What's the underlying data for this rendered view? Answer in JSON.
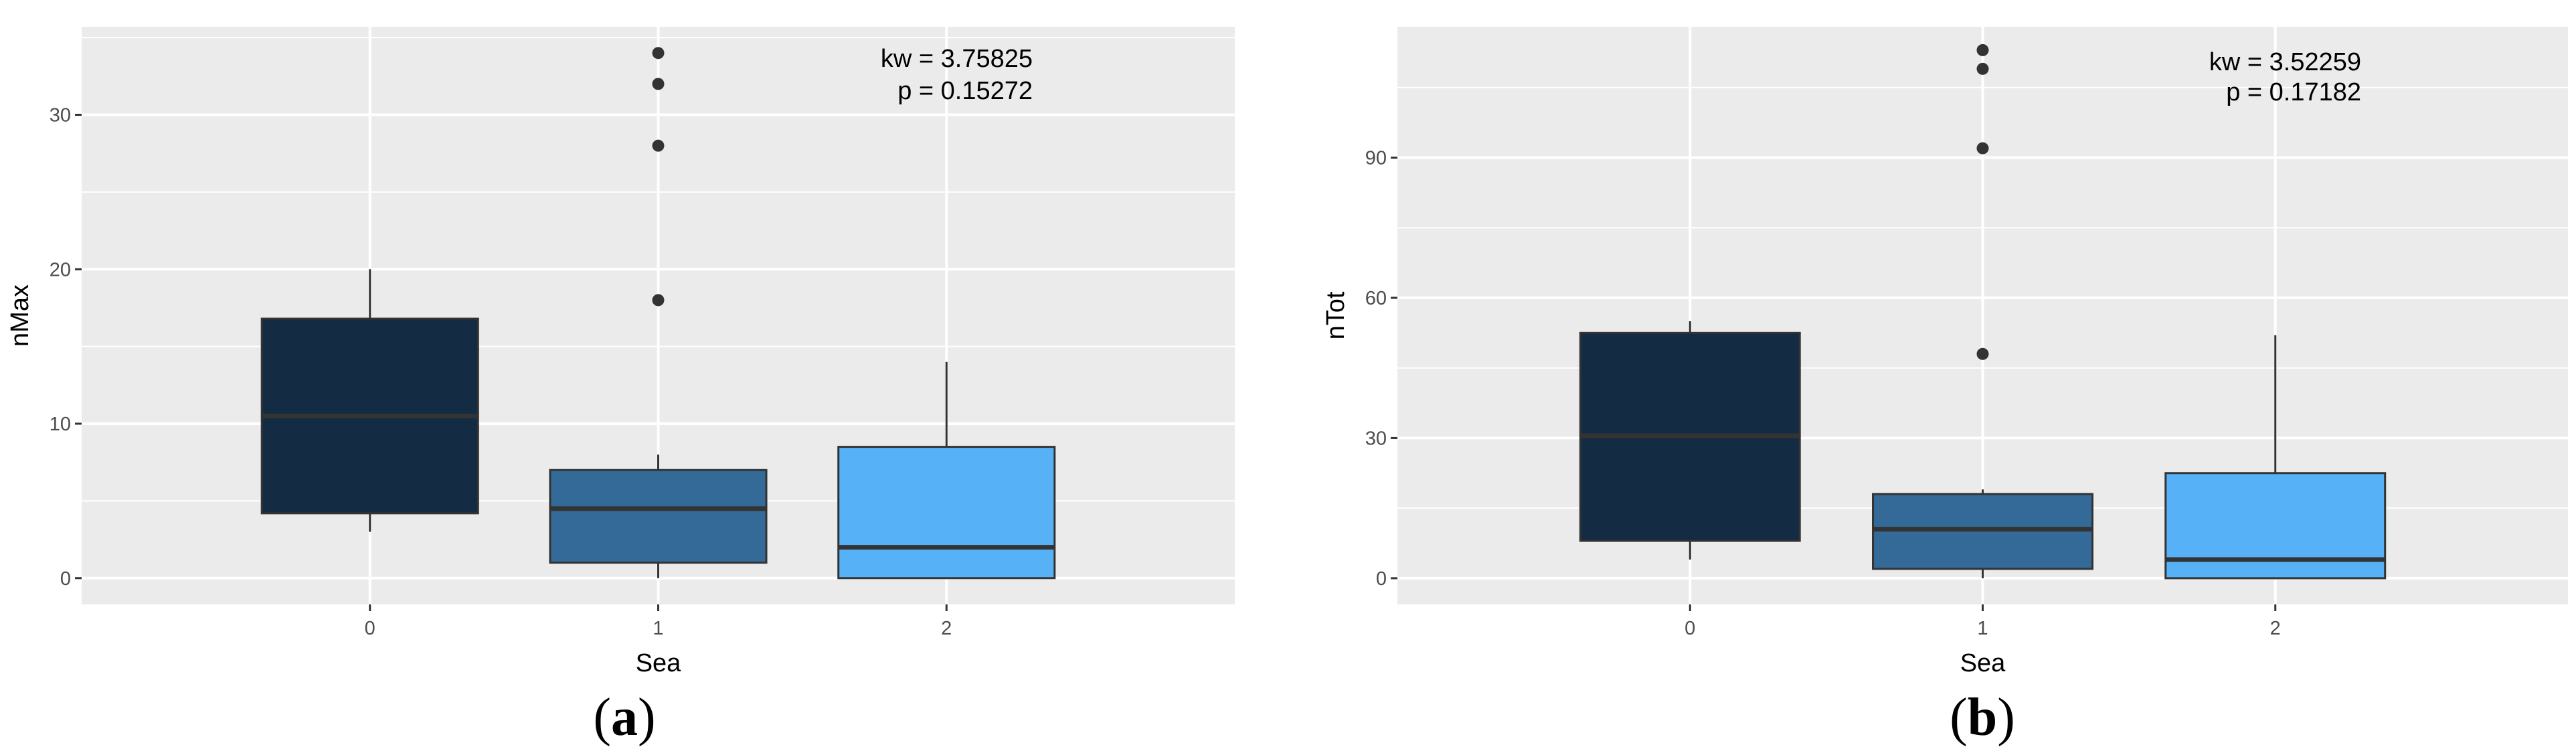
{
  "chart_data": [
    {
      "type": "box",
      "panel_label": "(a)",
      "xlabel": "Sea",
      "ylabel": "nMax",
      "categories": [
        "0",
        "1",
        "2"
      ],
      "ylim": [
        -1.7,
        35.7
      ],
      "yticks": [
        0,
        10,
        20,
        30
      ],
      "grid": true,
      "annotations": [
        "kw = 3.75825",
        "p = 0.15272"
      ],
      "colors": [
        "#132b43",
        "#336a98",
        "#56b1f7"
      ],
      "boxes": [
        {
          "category": "0",
          "whisker_low": 3,
          "q1": 4.2,
          "median": 10.5,
          "q3": 16.8,
          "whisker_high": 20,
          "outliers": []
        },
        {
          "category": "1",
          "whisker_low": 0,
          "q1": 1,
          "median": 4.5,
          "q3": 7,
          "whisker_high": 8,
          "outliers": [
            18,
            28,
            32,
            34
          ]
        },
        {
          "category": "2",
          "whisker_low": 0,
          "q1": 0,
          "median": 2,
          "q3": 8.5,
          "whisker_high": 14,
          "outliers": []
        }
      ]
    },
    {
      "type": "box",
      "panel_label": "(b)",
      "xlabel": "Sea",
      "ylabel": "nTot",
      "categories": [
        "0",
        "1",
        "2"
      ],
      "ylim": [
        -5.6,
        118
      ],
      "yticks": [
        0,
        30,
        60,
        90
      ],
      "grid": true,
      "annotations": [
        "kw = 3.52259",
        "p = 0.17182"
      ],
      "colors": [
        "#132b43",
        "#336a98",
        "#56b1f7"
      ],
      "boxes": [
        {
          "category": "0",
          "whisker_low": 4,
          "q1": 8,
          "median": 30.5,
          "q3": 52.5,
          "whisker_high": 55,
          "outliers": []
        },
        {
          "category": "1",
          "whisker_low": 0,
          "q1": 2,
          "median": 10.5,
          "q3": 18,
          "whisker_high": 19,
          "outliers": [
            48,
            92,
            109,
            113
          ]
        },
        {
          "category": "2",
          "whisker_low": 0,
          "q1": 0,
          "median": 4,
          "q3": 22.5,
          "whisker_high": 52,
          "outliers": []
        }
      ]
    }
  ]
}
